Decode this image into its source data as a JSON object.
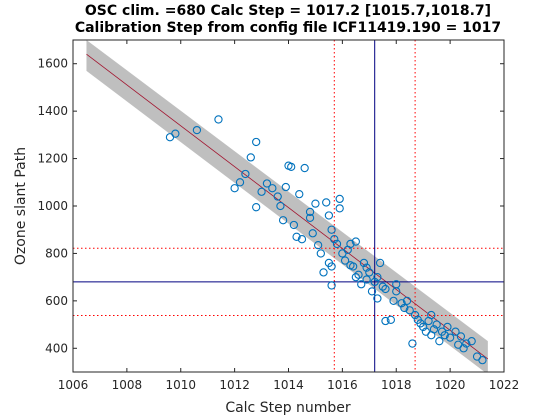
{
  "chart_data": {
    "type": "scatter",
    "title_line1": "OSC clim. =680   Calc Step = 1017.2 [1015.7,1018.7]",
    "title_line2": "Calibration Step from config file ICF11419.190 = 1017",
    "xlabel": "Calc Step number",
    "ylabel": "Ozone slant Path",
    "xlim": [
      1006,
      1022
    ],
    "ylim": [
      300,
      1700
    ],
    "xticks": [
      1006,
      1008,
      1010,
      1012,
      1014,
      1016,
      1018,
      1020,
      1022
    ],
    "yticks": [
      400,
      600,
      800,
      1000,
      1200,
      1400,
      1600
    ],
    "grid": false,
    "colors": {
      "points": "#0072bd",
      "band": "#bfbfbf",
      "fit_line": "#a2142f",
      "calc_lines": "#000080",
      "bounds": "#ff0000"
    },
    "band": {
      "x": [
        1006.5,
        1021.4
      ],
      "upper": [
        1700,
        430
      ],
      "lower": [
        1570,
        290
      ]
    },
    "fit_line": {
      "x": [
        1006.5,
        1021.4
      ],
      "y": [
        1640,
        355
      ]
    },
    "calc_step_line_x": 1017.2,
    "osc_line_y": 680,
    "bound_lines_x": [
      1015.7,
      1018.7
    ],
    "bound_lines_y": [
      822,
      538
    ],
    "points": [
      [
        1009.6,
        1290
      ],
      [
        1009.8,
        1305
      ],
      [
        1010.6,
        1320
      ],
      [
        1011.4,
        1365
      ],
      [
        1012.0,
        1075
      ],
      [
        1012.2,
        1100
      ],
      [
        1012.4,
        1135
      ],
      [
        1012.6,
        1205
      ],
      [
        1012.8,
        1270
      ],
      [
        1012.8,
        995
      ],
      [
        1013.0,
        1060
      ],
      [
        1013.2,
        1095
      ],
      [
        1013.4,
        1075
      ],
      [
        1013.6,
        1040
      ],
      [
        1013.7,
        1000
      ],
      [
        1013.8,
        940
      ],
      [
        1014.0,
        1170
      ],
      [
        1014.1,
        1165
      ],
      [
        1013.9,
        1080
      ],
      [
        1014.2,
        920
      ],
      [
        1014.4,
        1050
      ],
      [
        1014.3,
        870
      ],
      [
        1014.6,
        1160
      ],
      [
        1014.5,
        860
      ],
      [
        1014.8,
        975
      ],
      [
        1014.8,
        950
      ],
      [
        1015.0,
        1010
      ],
      [
        1014.9,
        885
      ],
      [
        1015.1,
        835
      ],
      [
        1015.2,
        800
      ],
      [
        1015.3,
        720
      ],
      [
        1015.4,
        1015
      ],
      [
        1015.5,
        960
      ],
      [
        1015.6,
        900
      ],
      [
        1015.7,
        860
      ],
      [
        1015.8,
        840
      ],
      [
        1015.6,
        745
      ],
      [
        1015.5,
        760
      ],
      [
        1015.6,
        665
      ],
      [
        1015.9,
        1030
      ],
      [
        1015.9,
        990
      ],
      [
        1016.0,
        800
      ],
      [
        1016.1,
        770
      ],
      [
        1016.2,
        815
      ],
      [
        1016.3,
        750
      ],
      [
        1016.3,
        840
      ],
      [
        1016.4,
        745
      ],
      [
        1016.5,
        700
      ],
      [
        1016.5,
        850
      ],
      [
        1016.6,
        710
      ],
      [
        1016.7,
        670
      ],
      [
        1016.8,
        760
      ],
      [
        1016.9,
        740
      ],
      [
        1016.9,
        690
      ],
      [
        1017.0,
        720
      ],
      [
        1017.1,
        640
      ],
      [
        1017.2,
        680
      ],
      [
        1017.3,
        700
      ],
      [
        1017.3,
        610
      ],
      [
        1017.4,
        760
      ],
      [
        1017.5,
        660
      ],
      [
        1017.6,
        515
      ],
      [
        1017.6,
        650
      ],
      [
        1017.8,
        520
      ],
      [
        1017.9,
        600
      ],
      [
        1018.0,
        640
      ],
      [
        1018.0,
        670
      ],
      [
        1018.2,
        590
      ],
      [
        1018.3,
        570
      ],
      [
        1018.4,
        600
      ],
      [
        1018.5,
        560
      ],
      [
        1018.6,
        420
      ],
      [
        1018.7,
        540
      ],
      [
        1018.8,
        520
      ],
      [
        1018.9,
        505
      ],
      [
        1019.0,
        490
      ],
      [
        1019.1,
        470
      ],
      [
        1019.2,
        515
      ],
      [
        1019.3,
        540
      ],
      [
        1019.3,
        455
      ],
      [
        1019.4,
        480
      ],
      [
        1019.5,
        500
      ],
      [
        1019.6,
        430
      ],
      [
        1019.7,
        470
      ],
      [
        1019.8,
        455
      ],
      [
        1019.9,
        490
      ],
      [
        1020.0,
        445
      ],
      [
        1020.2,
        470
      ],
      [
        1020.3,
        415
      ],
      [
        1020.4,
        450
      ],
      [
        1020.5,
        400
      ],
      [
        1020.6,
        420
      ],
      [
        1020.8,
        430
      ],
      [
        1021.0,
        365
      ],
      [
        1021.2,
        350
      ]
    ]
  }
}
